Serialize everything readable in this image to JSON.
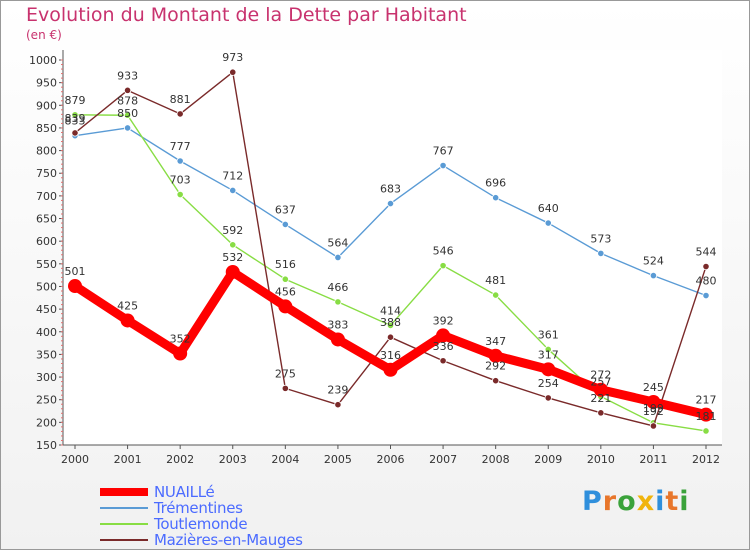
{
  "title": "Evolution du Montant de la Dette par Habitant",
  "unit": "(en €)",
  "logo": {
    "text": "Proxiti",
    "letters": [
      "P",
      "r",
      "o",
      "x",
      "i",
      "t",
      "i"
    ],
    "colors": [
      "#2f8fdc",
      "#e8762b",
      "#3aa23a",
      "#f0b40c",
      "#2f8fdc",
      "#e8762b",
      "#3aa23a"
    ]
  },
  "chart_data": {
    "type": "line",
    "title": "Evolution du Montant de la Dette par Habitant",
    "ylabel": "(en €)",
    "x": [
      "2000",
      "2001",
      "2002",
      "2003",
      "2004",
      "2005",
      "2006",
      "2007",
      "2008",
      "2009",
      "2010",
      "2011",
      "2012"
    ],
    "ylim": [
      150,
      1000
    ],
    "yticks": [
      150,
      200,
      250,
      300,
      350,
      400,
      450,
      500,
      550,
      600,
      650,
      700,
      750,
      800,
      850,
      900,
      950,
      1000
    ],
    "grid": false,
    "legend": "bottom-left",
    "series": [
      {
        "name": "NUAILLé",
        "color": "#ff0000",
        "values": [
          501,
          425,
          352,
          532,
          456,
          383,
          316,
          392,
          347,
          317,
          272,
          245,
          217
        ]
      },
      {
        "name": "Trémentines",
        "color": "#5a9bd5",
        "values": [
          833,
          850,
          777,
          712,
          637,
          564,
          683,
          767,
          696,
          640,
          573,
          524,
          480
        ]
      },
      {
        "name": "Toutlemonde",
        "color": "#88dd44",
        "values": [
          879,
          878,
          703,
          592,
          516,
          466,
          414,
          546,
          481,
          361,
          257,
          199,
          181
        ]
      },
      {
        "name": "Mazières-en-Mauges",
        "color": "#7a2a2a",
        "values": [
          839,
          933,
          881,
          973,
          275,
          239,
          388,
          336,
          292,
          254,
          221,
          192,
          544
        ]
      }
    ]
  }
}
